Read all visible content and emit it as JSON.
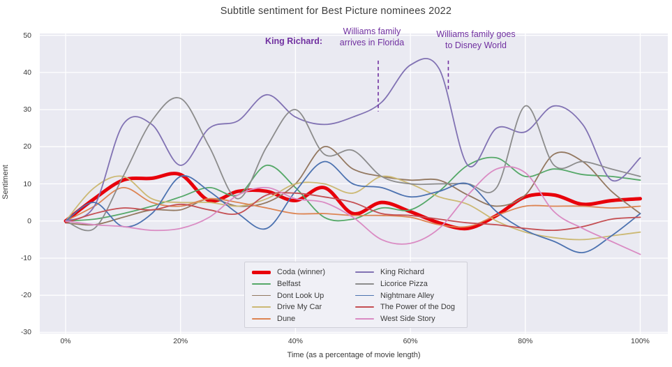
{
  "chart_data": {
    "type": "line",
    "title": "Subtitle sentiment for Best Picture nominees 2022",
    "xlabel": "Time (as a percentage of movie length)",
    "ylabel": "Sentiment",
    "xlim": [
      -4.5,
      104.8
    ],
    "ylim": [
      -30.3,
      50.5
    ],
    "grid": true,
    "plot_bg_color": "#eaeaf2",
    "grid_color": "#ffffff",
    "xticks": {
      "values": [
        0,
        20,
        40,
        60,
        80,
        100
      ],
      "labels": [
        "0%",
        "20%",
        "40%",
        "60%",
        "80%",
        "100%"
      ]
    },
    "yticks": {
      "values": [
        -30,
        -20,
        -10,
        0,
        10,
        20,
        30,
        40,
        50
      ],
      "labels": [
        "-30",
        "-20",
        "-10",
        "0",
        "10",
        "20",
        "30",
        "40",
        "50"
      ]
    },
    "x": [
      0,
      5,
      10,
      15,
      20,
      25,
      30,
      35,
      40,
      45,
      50,
      55,
      60,
      65,
      70,
      75,
      80,
      85,
      90,
      95,
      100
    ],
    "series": [
      {
        "name": "Coda (winner)",
        "color": "#e8000b",
        "line_width": 5,
        "values": [
          0,
          6,
          11,
          11.5,
          12.5,
          5.5,
          8,
          8,
          5.5,
          9,
          2,
          5,
          2.5,
          -0.5,
          -2,
          1.5,
          6.5,
          7,
          4.5,
          5.5,
          6
        ]
      },
      {
        "name": "Belfast",
        "color": "#55a868",
        "line_width": 1.8,
        "values": [
          0,
          0.5,
          2,
          4,
          6.5,
          9,
          7,
          15,
          9,
          1,
          0.5,
          3.5,
          3,
          8,
          15,
          17,
          12,
          14,
          12.5,
          12,
          11
        ]
      },
      {
        "name": "Dont Look Up",
        "color": "#937860",
        "line_width": 1.8,
        "values": [
          -0.5,
          -1,
          1,
          3,
          3,
          6,
          4,
          5,
          10,
          20,
          14,
          12,
          11,
          11,
          7,
          4,
          7,
          18,
          16,
          8,
          2
        ]
      },
      {
        "name": "Drive My Car",
        "color": "#ccb974",
        "line_width": 1.8,
        "values": [
          0,
          9,
          12,
          6,
          5,
          5,
          4,
          6,
          10,
          10,
          7.5,
          12,
          10,
          6.5,
          4.5,
          0,
          -3,
          -4.5,
          -5,
          -4,
          -3
        ]
      },
      {
        "name": "Dune",
        "color": "#dd8452",
        "line_width": 1.8,
        "values": [
          0,
          4,
          9,
          5,
          4,
          6,
          5,
          3.5,
          2,
          2,
          1.5,
          1.5,
          1,
          -1,
          -1.5,
          1.5,
          4,
          4,
          4,
          3.5,
          4
        ]
      },
      {
        "name": "King Richard",
        "color": "#8172b3",
        "line_width": 1.8,
        "values": [
          0,
          4,
          26,
          26,
          15,
          25,
          27,
          34,
          28,
          26,
          28,
          32,
          42,
          41,
          15,
          25,
          24,
          31,
          26,
          11,
          17
        ]
      },
      {
        "name": "Licorice Pizza",
        "color": "#8c8c8c",
        "line_width": 1.8,
        "values": [
          0,
          -2,
          12,
          27,
          33,
          20,
          6,
          20,
          30,
          18,
          19,
          12,
          10,
          10,
          10,
          9,
          31,
          15,
          16,
          14,
          12
        ]
      },
      {
        "name": "Nightmare Alley",
        "color": "#4c72b0",
        "line_width": 1.8,
        "values": [
          0,
          5,
          -1.5,
          2,
          12,
          8,
          2,
          -2,
          8,
          16,
          10,
          9,
          6.5,
          8,
          10,
          2.5,
          -2.5,
          -5.5,
          -8.5,
          -4,
          2
        ]
      },
      {
        "name": "The Power of the Dog",
        "color": "#c44e52",
        "line_width": 1.8,
        "values": [
          -0.5,
          2,
          3.5,
          3,
          4.5,
          3,
          2,
          7,
          7.5,
          6.5,
          5,
          2,
          1.5,
          0.5,
          -0.5,
          -1,
          -2,
          -2.5,
          -1.5,
          0.5,
          1
        ]
      },
      {
        "name": "West Side Story",
        "color": "#da8bc3",
        "line_width": 1.8,
        "values": [
          0,
          -1,
          -1.5,
          -2.5,
          -2,
          1,
          7,
          9,
          6,
          5,
          1,
          -5,
          -6,
          -2,
          7,
          14,
          13,
          2.5,
          -2,
          -5.5,
          -9
        ]
      }
    ],
    "legend_position": "lower center",
    "annotations": {
      "color": "#7030a0",
      "king_richard_label": "King Richard:",
      "note1_line1": "Williams family",
      "note1_line2": "arrives in Florida",
      "note2_line1": "Williams family goes",
      "note2_line2": "to Disney World",
      "dashed_lines": [
        {
          "x": 54.4,
          "y_top": 43.2,
          "y_bottom": 29.5
        },
        {
          "x": 66.6,
          "y_top": 43.2,
          "y_bottom": 35.0
        }
      ]
    }
  }
}
